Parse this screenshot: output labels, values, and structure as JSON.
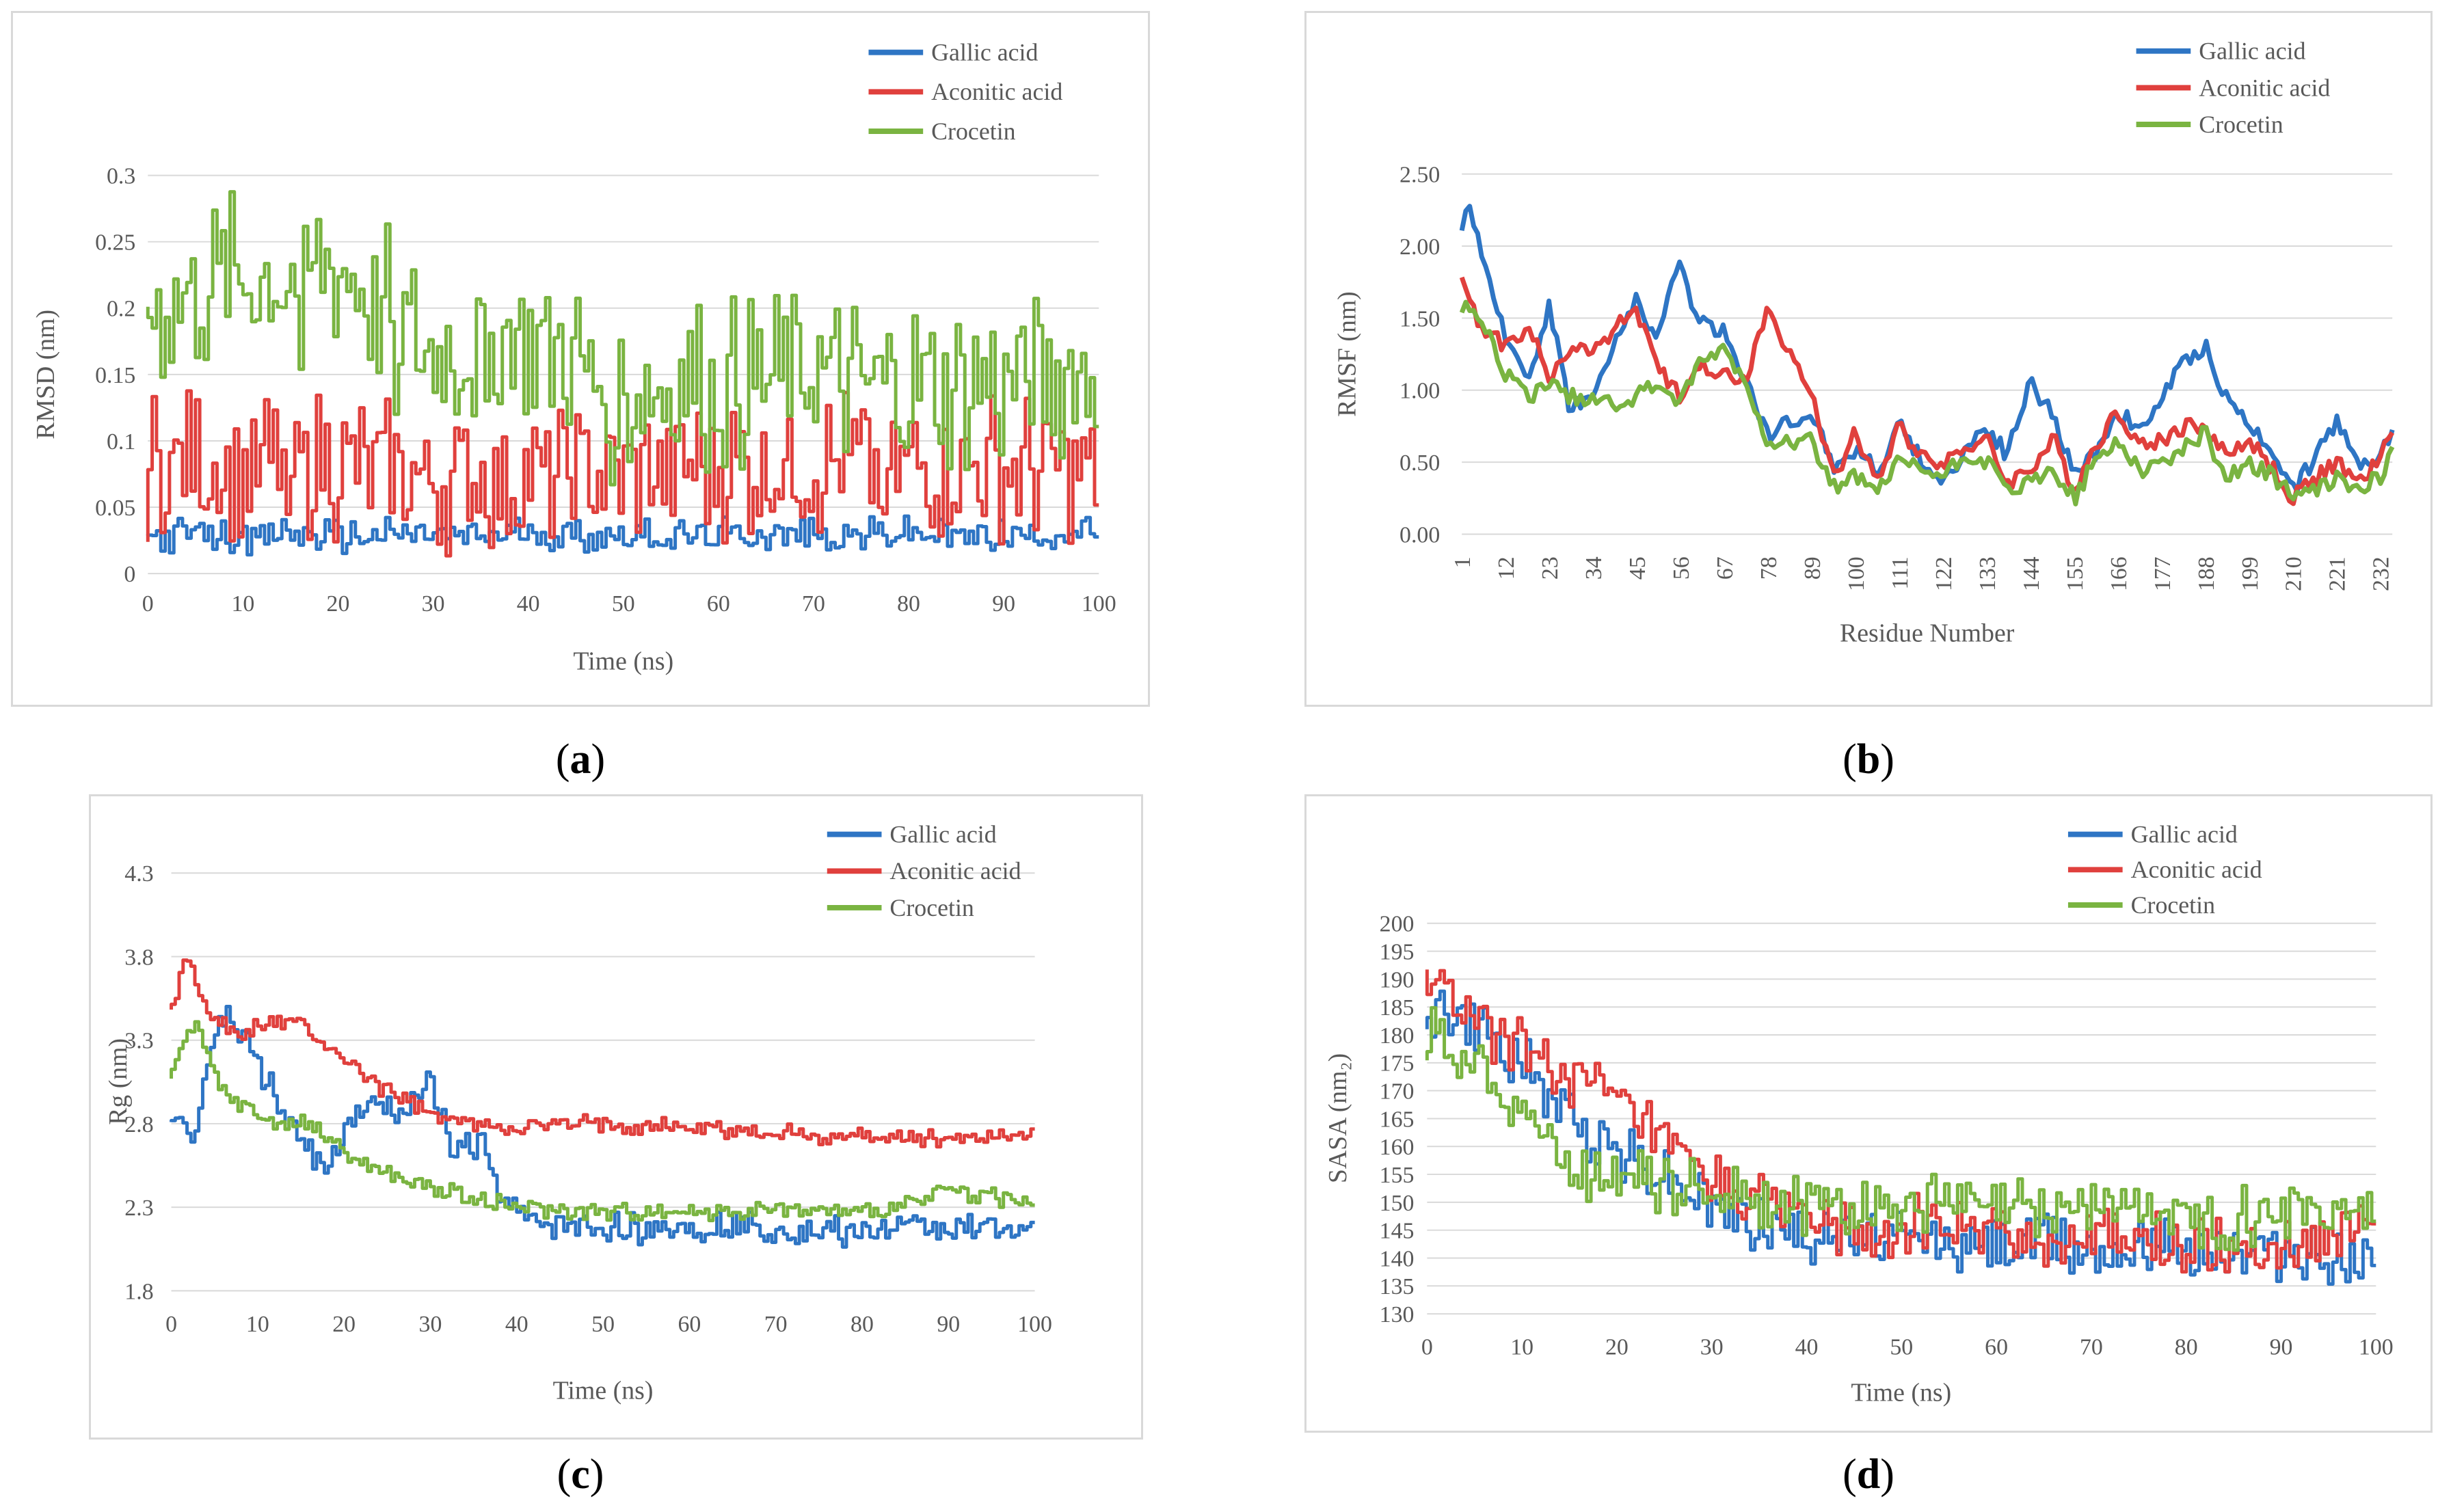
{
  "colors": {
    "gallic": "#2E75C4",
    "aconitic": "#E0403D",
    "crocetin": "#7AB441"
  },
  "captions": [
    {
      "letter": "a"
    },
    {
      "letter": "b"
    },
    {
      "letter": "c"
    },
    {
      "letter": "d"
    }
  ],
  "chart_data": [
    {
      "id": "a",
      "type": "line",
      "title": "",
      "xlabel": "Time (ns)",
      "ylabel": "RMSD (nm)",
      "xlim": [
        0,
        100
      ],
      "ylim": [
        0,
        0.3
      ],
      "xticks": [
        "0",
        "10",
        "20",
        "30",
        "40",
        "50",
        "60",
        "70",
        "80",
        "90",
        "100"
      ],
      "yticks": [
        "0",
        "0.05",
        "0.1",
        "0.15",
        "0.2",
        "0.25",
        "0.3"
      ],
      "legend": [
        "Gallic acid",
        "Aconitic acid",
        "Crocetin"
      ],
      "legend_position": "top-right",
      "gridlines": "horizontal",
      "series": [
        {
          "name": "Gallic acid",
          "x": [
            0,
            5,
            10,
            15,
            20,
            25,
            30,
            35,
            40,
            45,
            50,
            55,
            60,
            65,
            70,
            75,
            80,
            85,
            90,
            95,
            100
          ],
          "y": [
            0.028,
            0.03,
            0.027,
            0.031,
            0.028,
            0.029,
            0.03,
            0.028,
            0.031,
            0.029,
            0.03,
            0.028,
            0.029,
            0.03,
            0.028,
            0.029,
            0.03,
            0.028,
            0.029,
            0.03,
            0.033
          ],
          "jitter": 0.014
        },
        {
          "name": "Aconitic acid",
          "x": [
            0,
            5,
            10,
            15,
            20,
            25,
            30,
            35,
            40,
            45,
            50,
            55,
            60,
            65,
            70,
            75,
            80,
            85,
            90,
            95,
            100
          ],
          "y": [
            0.08,
            0.08,
            0.08,
            0.08,
            0.08,
            0.075,
            0.07,
            0.07,
            0.07,
            0.075,
            0.075,
            0.078,
            0.08,
            0.08,
            0.082,
            0.082,
            0.08,
            0.08,
            0.08,
            0.078,
            0.08
          ],
          "jitter": 0.06
        },
        {
          "name": "Crocetin",
          "x": [
            0,
            5,
            10,
            15,
            20,
            25,
            30,
            35,
            40,
            45,
            50,
            55,
            60,
            65,
            70,
            75,
            80,
            85,
            90,
            95,
            100
          ],
          "y": [
            0.2,
            0.21,
            0.22,
            0.22,
            0.23,
            0.2,
            0.16,
            0.17,
            0.18,
            0.16,
            0.13,
            0.14,
            0.14,
            0.14,
            0.15,
            0.14,
            0.14,
            0.14,
            0.14,
            0.15,
            0.15
          ],
          "jitter": 0.07
        }
      ]
    },
    {
      "id": "b",
      "type": "line",
      "title": "",
      "xlabel": "Residue Number",
      "ylabel": "RMSF (nm)",
      "xlim": [
        1,
        235
      ],
      "ylim": [
        0,
        2.5
      ],
      "xticks": [
        "1",
        "12",
        "23",
        "34",
        "45",
        "56",
        "67",
        "78",
        "89",
        "100",
        "111",
        "122",
        "133",
        "144",
        "155",
        "166",
        "177",
        "188",
        "199",
        "210",
        "221",
        "232"
      ],
      "yticks": [
        "0.00",
        "0.50",
        "1.00",
        "1.50",
        "2.00",
        "2.50"
      ],
      "legend": [
        "Gallic acid",
        "Aconitic acid",
        "Crocetin"
      ],
      "legend_position": "top-right",
      "gridlines": "horizontal",
      "series": [
        {
          "name": "Gallic acid",
          "x": [
            1,
            3,
            6,
            12,
            18,
            23,
            28,
            34,
            40,
            45,
            50,
            56,
            60,
            67,
            72,
            78,
            89,
            95,
            100,
            106,
            111,
            116,
            122,
            128,
            133,
            138,
            144,
            150,
            155,
            160,
            166,
            172,
            177,
            183,
            188,
            193,
            199,
            205,
            210,
            216,
            221,
            226,
            232,
            235
          ],
          "y": [
            2.15,
            2.3,
            1.9,
            1.35,
            1.1,
            1.6,
            0.9,
            0.95,
            1.35,
            1.65,
            1.35,
            1.9,
            1.5,
            1.4,
            1.1,
            0.7,
            0.85,
            0.45,
            0.6,
            0.45,
            0.75,
            0.55,
            0.35,
            0.6,
            0.75,
            0.55,
            1.05,
            0.8,
            0.4,
            0.55,
            0.85,
            0.7,
            0.95,
            1.2,
            1.3,
            0.95,
            0.75,
            0.6,
            0.3,
            0.55,
            0.8,
            0.5,
            0.55,
            0.75
          ]
        },
        {
          "name": "Aconitic acid",
          "x": [
            1,
            3,
            6,
            12,
            18,
            23,
            28,
            34,
            40,
            45,
            50,
            56,
            60,
            67,
            72,
            78,
            89,
            95,
            100,
            106,
            111,
            116,
            122,
            128,
            133,
            138,
            144,
            150,
            155,
            160,
            166,
            172,
            177,
            183,
            188,
            193,
            199,
            205,
            210,
            216,
            221,
            226,
            232,
            235
          ],
          "y": [
            1.75,
            1.6,
            1.45,
            1.3,
            1.45,
            1.05,
            1.3,
            1.25,
            1.45,
            1.55,
            1.15,
            0.95,
            1.2,
            1.1,
            1.05,
            1.55,
            0.95,
            0.4,
            0.7,
            0.35,
            0.75,
            0.55,
            0.5,
            0.6,
            0.65,
            0.35,
            0.45,
            0.65,
            0.3,
            0.6,
            0.85,
            0.6,
            0.65,
            0.75,
            0.75,
            0.55,
            0.65,
            0.45,
            0.25,
            0.4,
            0.5,
            0.35,
            0.5,
            0.75
          ]
        },
        {
          "name": "Crocetin",
          "x": [
            1,
            3,
            6,
            12,
            18,
            23,
            28,
            34,
            40,
            45,
            50,
            56,
            60,
            67,
            72,
            78,
            89,
            95,
            100,
            106,
            111,
            116,
            122,
            128,
            133,
            138,
            144,
            150,
            155,
            160,
            166,
            172,
            177,
            183,
            188,
            193,
            199,
            205,
            210,
            216,
            221,
            226,
            232,
            235
          ],
          "y": [
            1.55,
            1.6,
            1.5,
            1.1,
            0.95,
            1.05,
            0.95,
            0.95,
            0.9,
            0.95,
            1.05,
            0.9,
            1.15,
            1.3,
            1.05,
            0.65,
            0.65,
            0.3,
            0.4,
            0.3,
            0.5,
            0.45,
            0.4,
            0.55,
            0.5,
            0.3,
            0.35,
            0.45,
            0.25,
            0.5,
            0.65,
            0.45,
            0.5,
            0.6,
            0.7,
            0.4,
            0.5,
            0.4,
            0.25,
            0.3,
            0.4,
            0.3,
            0.4,
            0.55
          ]
        }
      ]
    },
    {
      "id": "c",
      "type": "line",
      "title": "",
      "xlabel": "Time (ns)",
      "ylabel": "Rg (nm)",
      "xlim": [
        0,
        100
      ],
      "ylim": [
        1.8,
        4.3
      ],
      "xticks": [
        "0",
        "10",
        "20",
        "30",
        "40",
        "50",
        "60",
        "70",
        "80",
        "90",
        "100"
      ],
      "yticks": [
        "1.8",
        "2.3",
        "2.8",
        "3.3",
        "3.8",
        "4.3"
      ],
      "legend": [
        "Gallic acid",
        "Aconitic acid",
        "Crocetin"
      ],
      "legend_position": "top-right",
      "gridlines": "horizontal",
      "series": [
        {
          "name": "Gallic acid",
          "x": [
            0,
            3,
            6,
            9,
            12,
            15,
            18,
            21,
            24,
            27,
            30,
            33,
            36,
            39,
            42,
            50,
            60,
            70,
            80,
            90,
            100
          ],
          "y": [
            2.85,
            2.75,
            3.5,
            3.3,
            3.0,
            2.7,
            2.5,
            2.8,
            2.9,
            2.85,
            3.1,
            2.6,
            2.7,
            2.3,
            2.2,
            2.17,
            2.18,
            2.17,
            2.15,
            2.18,
            2.17
          ],
          "jitter": 0.1
        },
        {
          "name": "Aconitic acid",
          "x": [
            0,
            2,
            5,
            8,
            11,
            15,
            20,
            25,
            30,
            35,
            40,
            50,
            60,
            70,
            80,
            90,
            100
          ],
          "y": [
            3.45,
            3.8,
            3.45,
            3.3,
            3.4,
            3.4,
            3.2,
            3.0,
            2.85,
            2.8,
            2.78,
            2.8,
            2.78,
            2.75,
            2.72,
            2.72,
            2.75
          ],
          "jitter": 0.06
        },
        {
          "name": "Crocetin",
          "x": [
            0,
            3,
            6,
            9,
            12,
            15,
            18,
            21,
            25,
            30,
            35,
            40,
            50,
            60,
            70,
            80,
            85,
            90,
            95,
            100
          ],
          "y": [
            3.1,
            3.4,
            3.0,
            2.9,
            2.8,
            2.8,
            2.75,
            2.6,
            2.5,
            2.42,
            2.35,
            2.3,
            2.27,
            2.28,
            2.28,
            2.27,
            2.3,
            2.4,
            2.38,
            2.3
          ],
          "jitter": 0.06
        }
      ]
    },
    {
      "id": "d",
      "type": "line",
      "title": "",
      "xlabel": "Time (ns)",
      "ylabel": "SASA (nm₂)",
      "xlim": [
        0,
        100
      ],
      "ylim": [
        130,
        200
      ],
      "xticks": [
        "0",
        "10",
        "20",
        "30",
        "40",
        "50",
        "60",
        "70",
        "80",
        "90",
        "100"
      ],
      "yticks": [
        "130",
        "135",
        "140",
        "145",
        "150",
        "155",
        "160",
        "165",
        "170",
        "175",
        "180",
        "185",
        "190",
        "195",
        "200"
      ],
      "legend": [
        "Gallic acid",
        "Aconitic acid",
        "Crocetin"
      ],
      "legend_position": "top-right",
      "gridlines": "horizontal",
      "series": [
        {
          "name": "Gallic acid",
          "x": [
            0,
            5,
            10,
            15,
            20,
            25,
            30,
            35,
            40,
            45,
            50,
            55,
            60,
            65,
            70,
            75,
            80,
            85,
            90,
            95,
            100
          ],
          "y": [
            185,
            182,
            175,
            165,
            160,
            155,
            150,
            147,
            145,
            144,
            143,
            143,
            142,
            143,
            142,
            142,
            141,
            141,
            141,
            140,
            140
          ],
          "jitter": 6
        },
        {
          "name": "Aconitic acid",
          "x": [
            0,
            5,
            10,
            15,
            20,
            25,
            30,
            35,
            40,
            45,
            50,
            55,
            60,
            65,
            70,
            75,
            80,
            85,
            90,
            95,
            100
          ],
          "y": [
            190,
            183,
            178,
            173,
            168,
            160,
            153,
            150,
            148,
            146,
            146,
            145,
            144,
            143,
            143,
            143,
            142,
            142,
            142,
            143,
            148
          ],
          "jitter": 6
        },
        {
          "name": "Crocetin",
          "x": [
            0,
            5,
            10,
            15,
            20,
            25,
            30,
            35,
            40,
            45,
            50,
            55,
            60,
            65,
            70,
            75,
            80,
            85,
            90,
            95,
            100
          ],
          "y": [
            180,
            176,
            168,
            157,
            155,
            153,
            152,
            151,
            150,
            149,
            150,
            150,
            148,
            149,
            150,
            149,
            147,
            147,
            149,
            149,
            149
          ],
          "jitter": 6
        }
      ]
    }
  ]
}
